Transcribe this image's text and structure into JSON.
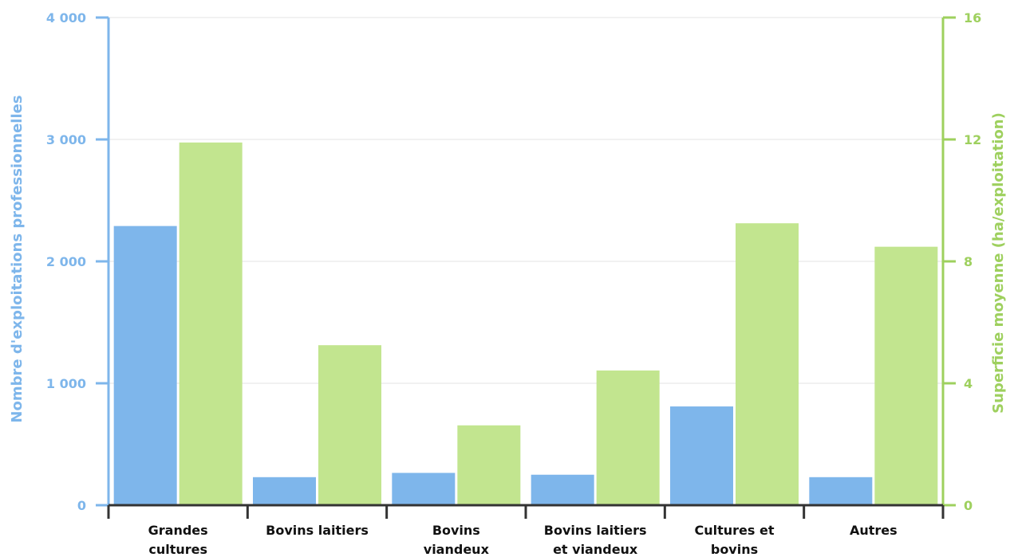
{
  "chart_data": {
    "type": "bar",
    "categories": [
      [
        "Grandes",
        "cultures"
      ],
      [
        "Bovins laitiers"
      ],
      [
        "Bovins",
        "viandeux"
      ],
      [
        "Bovins laitiers",
        "et viandeux"
      ],
      [
        "Cultures et",
        "bovins"
      ],
      [
        "Autres"
      ]
    ],
    "series": [
      {
        "values": [
          2290,
          230,
          265,
          250,
          810,
          230
        ],
        "axis": "left",
        "color": "#7eb6eb"
      },
      {
        "values": [
          11.9,
          5.25,
          2.62,
          4.42,
          9.25,
          8.48
        ],
        "axis": "right",
        "color": "#c2e58f"
      }
    ],
    "ylabel": "Nombre d'exploitations professionnelles",
    "ylabel_right": "Superficie moyenne (ha/exploitation)",
    "ylim": [
      0,
      4000
    ],
    "ylim_right": [
      0,
      16
    ],
    "yticks": [
      0,
      1000,
      2000,
      3000,
      4000
    ],
    "yticks_labels": [
      "0",
      "1 000",
      "2 000",
      "3 000",
      "4 000"
    ],
    "yticks_right": [
      0,
      4,
      8,
      12,
      16
    ],
    "yticks_right_labels": [
      "0",
      "4",
      "8",
      "12",
      "16"
    ],
    "grid": true,
    "colors": {
      "left_axis": "#7eb6eb",
      "right_axis": "#9ed05e",
      "grid": "#e3e3e3",
      "category_axis": "#333333"
    }
  }
}
